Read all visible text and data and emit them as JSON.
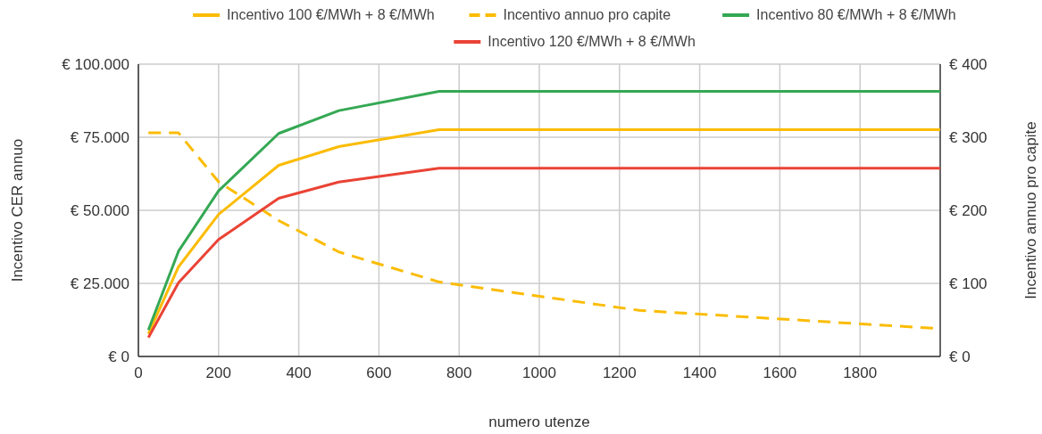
{
  "chart_data": {
    "type": "line",
    "xlabel": "numero utenze",
    "ylabel": "Incentivo CER annuo",
    "y2label": "Incentivo annuo pro capite",
    "x": [
      25,
      100,
      200,
      350,
      500,
      750,
      2000
    ],
    "series": [
      {
        "name": "Incentivo 100 €/MWh + 8 €/MWh",
        "color": "#fbbc04",
        "values": [
          7760,
          30650,
          48600,
          65400,
          71800,
          77600,
          77600
        ]
      },
      {
        "name": "Incentivo annuo pro capite",
        "color": "#fbbc04",
        "axis": "y2",
        "line_style": "dashed",
        "x": [
          25,
          100,
          200,
          350,
          500,
          750,
          1250,
          2000
        ],
        "values": [
          306,
          306,
          239,
          186,
          143,
          102,
          63,
          38
        ]
      },
      {
        "name": "Incentivo 80 €/MWh + 8 €/MWh",
        "color": "#34a853",
        "values": [
          9070,
          36000,
          56650,
          76300,
          84100,
          90700,
          90700
        ]
      },
      {
        "name": "Incentivo 120 €/MWh + 8 €/MWh",
        "color": "#ea4335",
        "values": [
          6450,
          25200,
          40000,
          54100,
          59700,
          64400,
          64400
        ]
      }
    ],
    "xlim": [
      0,
      2000
    ],
    "xticks": [
      0,
      200,
      400,
      600,
      800,
      1000,
      1200,
      1400,
      1600,
      1800
    ],
    "ylim": [
      0,
      100000
    ],
    "yticks": [
      {
        "value": 0,
        "label": "€ 0"
      },
      {
        "value": 25000,
        "label": "€ 25.000"
      },
      {
        "value": 50000,
        "label": "€ 50.000"
      },
      {
        "value": 75000,
        "label": "€ 75.000"
      },
      {
        "value": 100000,
        "label": "€ 100.000"
      }
    ],
    "y2lim": [
      0,
      400
    ],
    "y2ticks": [
      {
        "value": 0,
        "label": "€ 0"
      },
      {
        "value": 100,
        "label": "€ 100"
      },
      {
        "value": 200,
        "label": "€ 200"
      },
      {
        "value": 300,
        "label": "€ 300"
      },
      {
        "value": 400,
        "label": "€ 400"
      }
    ],
    "grid": true,
    "legend": "top",
    "marker": "none"
  }
}
